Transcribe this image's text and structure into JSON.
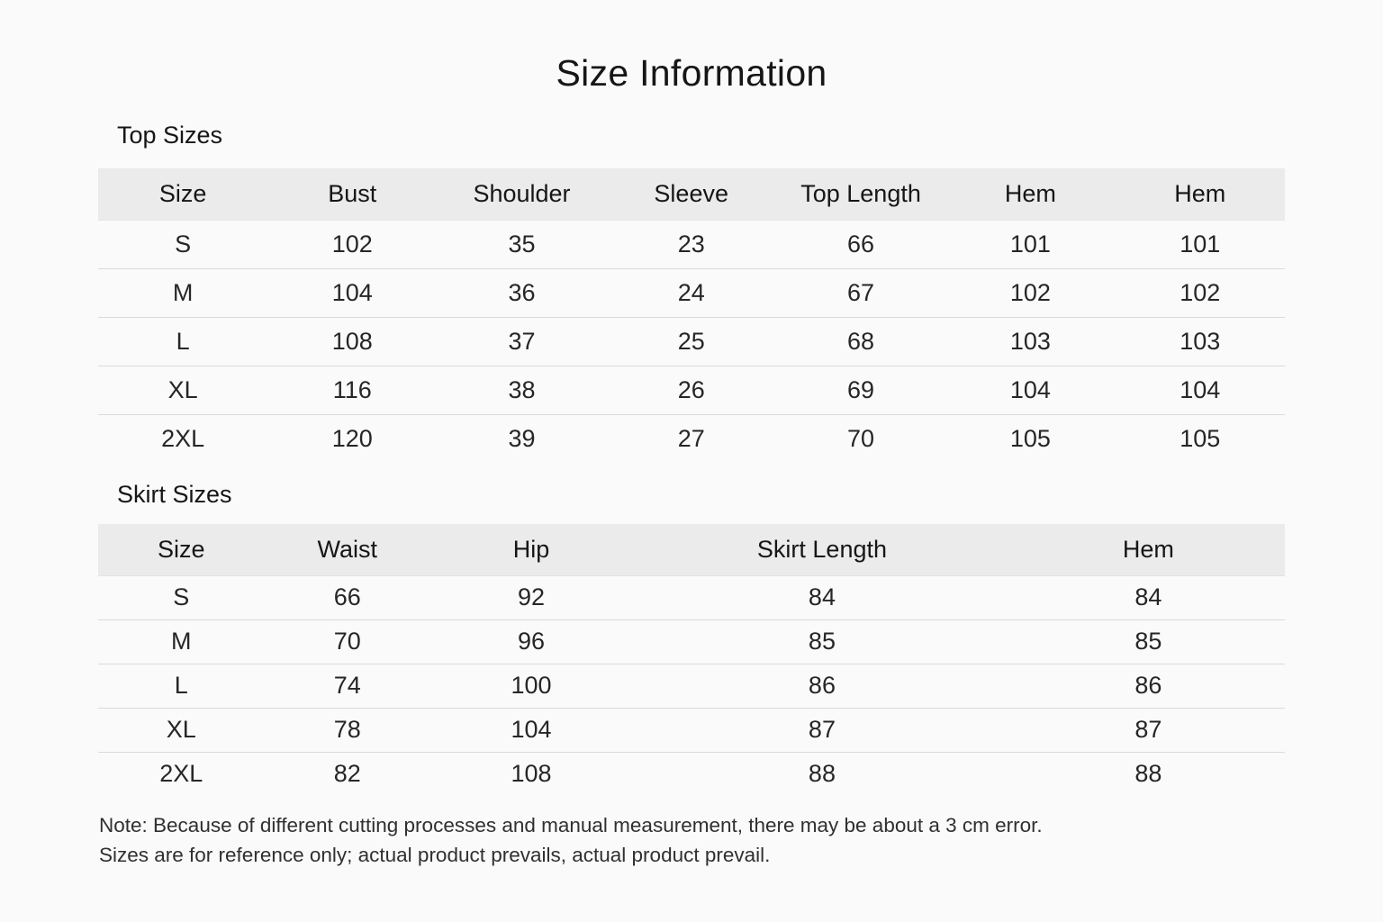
{
  "page": {
    "title": "Size Information",
    "background_color": "#fafafa",
    "header_row_color": "#ebebeb",
    "divider_color": "#dadada",
    "text_color": "#1c1c1c"
  },
  "tables": [
    {
      "section_title": "Top Sizes",
      "columns": [
        "Size",
        "Bust",
        "Shoulder",
        "Sleeve",
        "Top Length",
        "Hem",
        "Hem"
      ],
      "rows": [
        [
          "S",
          "102",
          "35",
          "23",
          "66",
          "101",
          "101"
        ],
        [
          "M",
          "104",
          "36",
          "24",
          "67",
          "102",
          "102"
        ],
        [
          "L",
          "108",
          "37",
          "25",
          "68",
          "103",
          "103"
        ],
        [
          "XL",
          "116",
          "38",
          "26",
          "69",
          "104",
          "104"
        ],
        [
          "2XL",
          "120",
          "39",
          "27",
          "70",
          "105",
          "105"
        ]
      ]
    },
    {
      "section_title": "Skirt Sizes",
      "columns": [
        "Size",
        "Waist",
        "Hip",
        "Skirt Length",
        "Hem"
      ],
      "rows": [
        [
          "S",
          "66",
          "92",
          "84",
          "84"
        ],
        [
          "M",
          "70",
          "96",
          "85",
          "85"
        ],
        [
          "L",
          "74",
          "100",
          "86",
          "86"
        ],
        [
          "XL",
          "78",
          "104",
          "87",
          "87"
        ],
        [
          "2XL",
          "82",
          "108",
          "88",
          "88"
        ]
      ]
    }
  ],
  "note": {
    "line1": "Note: Because of different cutting processes and manual measurement, there may be about a 3 cm error.",
    "line2": "Sizes are for reference only; actual product prevails, actual product prevail."
  }
}
